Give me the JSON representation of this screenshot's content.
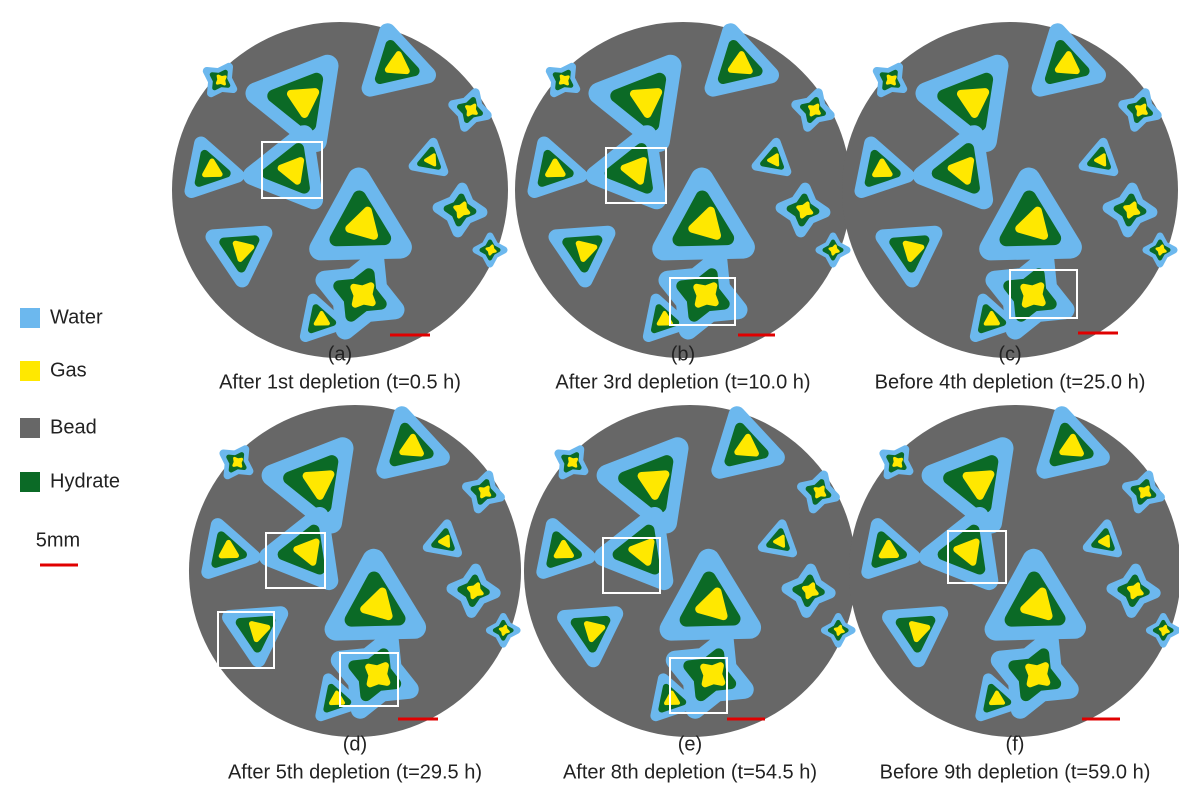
{
  "legend": [
    {
      "label": "Water",
      "color": "#6cb8ee"
    },
    {
      "label": "Gas",
      "color": "#ffe800"
    },
    {
      "label": "Bead",
      "color": "#676767"
    },
    {
      "label": "Hydrate",
      "color": "#0b6a26"
    }
  ],
  "scale_bar": {
    "label": "5mm"
  },
  "panels": [
    {
      "letter": "(a)",
      "caption": "After 1st depletion (t=0.5 h)"
    },
    {
      "letter": "(b)",
      "caption": "After 3rd depletion (t=10.0 h)"
    },
    {
      "letter": "(c)",
      "caption": "Before 4th depletion (t=25.0 h)"
    },
    {
      "letter": "(d)",
      "caption": "After 5th depletion (t=29.5 h)"
    },
    {
      "letter": "(e)",
      "caption": "After 8th depletion (t=54.5 h)"
    },
    {
      "letter": "(f)",
      "caption": "Before 9th depletion (t=59.0 h)"
    }
  ]
}
